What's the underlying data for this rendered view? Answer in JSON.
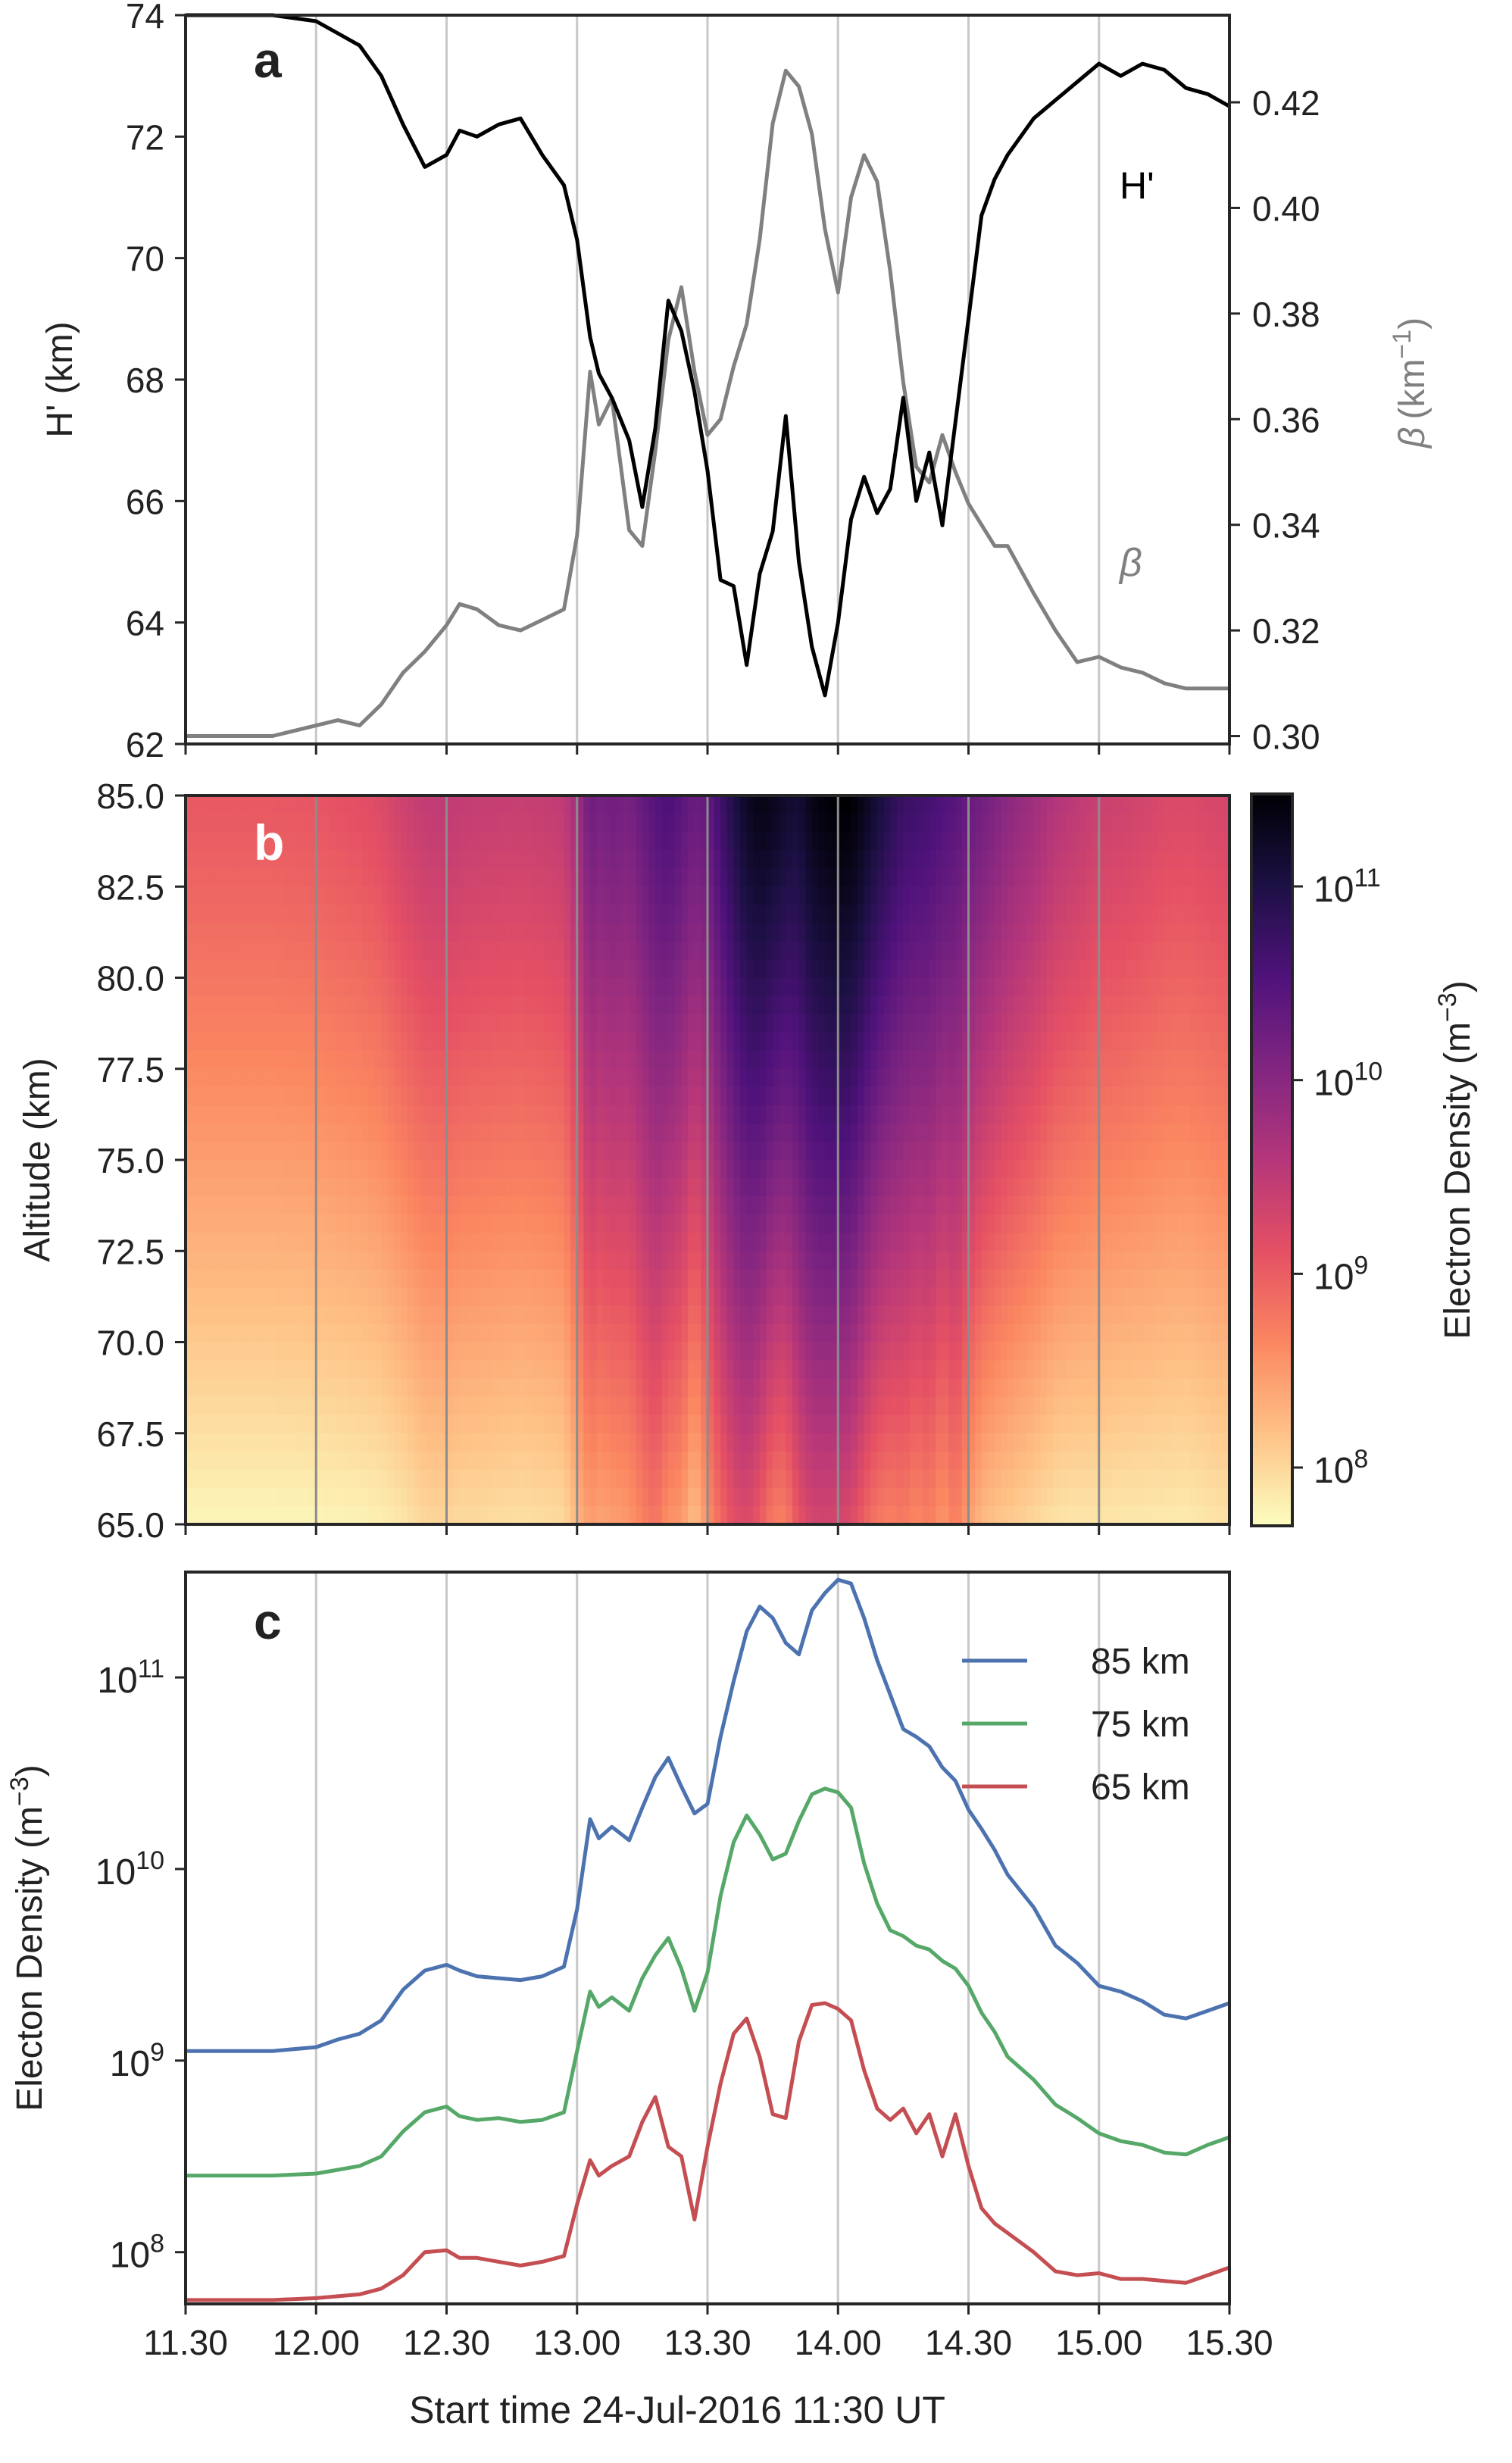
{
  "x_ticks": [
    "11.30",
    "12.00",
    "12.30",
    "13.00",
    "13.30",
    "14.00",
    "14.30",
    "15.00",
    "15.30"
  ],
  "x_title": "Start time 24-Jul-2016 11:30 UT",
  "colors": {
    "black": "#000000",
    "gray": "#808080",
    "grid": "#c8c8c8",
    "blue": "#4c72b0",
    "green": "#55a868",
    "red": "#c44e52"
  },
  "chart_data": [
    {
      "type": "line",
      "panel_label": "a",
      "xlabel": "",
      "ylabel": "H' (km)",
      "ylim": [
        62,
        74
      ],
      "y2label_main": "β",
      "y2label_unit": "(km",
      "y2label_exp": "−1",
      "y2label_close": ")",
      "y2lim": [
        0.2985,
        0.4365
      ],
      "y_ticks": [
        "62",
        "64",
        "66",
        "68",
        "70",
        "72",
        "74"
      ],
      "y2_ticks": [
        "0.30",
        "0.32",
        "0.34",
        "0.36",
        "0.38",
        "0.40",
        "0.42"
      ],
      "x": [
        "11.30",
        "11.40",
        "11.50",
        "12.00",
        "12.05",
        "12.10",
        "12.15",
        "12.20",
        "12.25",
        "12.30",
        "12.33",
        "12.37",
        "12.42",
        "12.47",
        "12.52",
        "12.57",
        "13.00",
        "13.03",
        "13.05",
        "13.08",
        "13.12",
        "13.15",
        "13.18",
        "13.21",
        "13.24",
        "13.27",
        "13.30",
        "13.33",
        "13.36",
        "13.39",
        "13.42",
        "13.45",
        "13.48",
        "13.51",
        "13.54",
        "13.57",
        "14.00",
        "14.03",
        "14.06",
        "14.09",
        "14.12",
        "14.15",
        "14.18",
        "14.21",
        "14.24",
        "14.27",
        "14.30",
        "14.33",
        "14.36",
        "14.39",
        "14.45",
        "14.50",
        "14.55",
        "15.00",
        "15.05",
        "15.10",
        "15.15",
        "15.20",
        "15.25",
        "15.30"
      ],
      "series": [
        {
          "name": "H'",
          "axis": "left",
          "color": "#000000",
          "values": [
            74.0,
            74.0,
            74.0,
            73.9,
            73.7,
            73.5,
            73.0,
            72.2,
            71.5,
            71.7,
            72.1,
            72.0,
            72.2,
            72.3,
            71.7,
            71.2,
            70.3,
            68.7,
            68.1,
            67.7,
            67.0,
            65.9,
            67.2,
            69.3,
            68.8,
            67.8,
            66.5,
            64.7,
            64.6,
            63.3,
            64.8,
            65.5,
            67.4,
            65.0,
            63.6,
            62.8,
            64.0,
            65.7,
            66.4,
            65.8,
            66.2,
            67.7,
            66.0,
            66.8,
            65.6,
            67.3,
            69.0,
            70.7,
            71.3,
            71.7,
            72.3,
            72.6,
            72.9,
            73.2,
            73.0,
            73.2,
            73.1,
            72.8,
            72.7,
            72.5
          ]
        },
        {
          "name": "β",
          "axis": "right",
          "color": "#808080",
          "values": [
            0.3,
            0.3,
            0.3,
            0.302,
            0.303,
            0.302,
            0.306,
            0.312,
            0.316,
            0.321,
            0.325,
            0.324,
            0.321,
            0.32,
            0.322,
            0.324,
            0.338,
            0.369,
            0.359,
            0.364,
            0.339,
            0.336,
            0.354,
            0.375,
            0.385,
            0.369,
            0.357,
            0.36,
            0.37,
            0.378,
            0.394,
            0.416,
            0.426,
            0.423,
            0.414,
            0.396,
            0.384,
            0.402,
            0.41,
            0.405,
            0.388,
            0.367,
            0.351,
            0.348,
            0.357,
            0.35,
            0.344,
            0.34,
            0.336,
            0.336,
            0.327,
            0.32,
            0.314,
            0.315,
            0.313,
            0.312,
            0.31,
            0.309,
            0.309,
            0.309
          ]
        }
      ]
    },
    {
      "type": "heatmap",
      "panel_label": "b",
      "xlabel": "",
      "ylabel": "Altitude (km)",
      "ylim": [
        65.0,
        85.0
      ],
      "y_ticks": [
        "65.0",
        "67.5",
        "70.0",
        "72.5",
        "75.0",
        "77.5",
        "80.0",
        "82.5",
        "85.0"
      ],
      "colorbar": {
        "label_main": "Electron Density (m",
        "label_exp": "−3",
        "label_close": ")",
        "scale": "log",
        "range": [
          50000000.0,
          300000000000.0
        ],
        "tick_bases": [
          "10",
          "10",
          "10",
          "10"
        ],
        "tick_exps": [
          "8",
          "9",
          "10",
          "11"
        ],
        "colormap": "magma_r"
      },
      "note_values": "log10 electron density at 85 km and 65 km per time column",
      "x": [
        "11.30",
        "11.40",
        "11.50",
        "12.00",
        "12.05",
        "12.10",
        "12.15",
        "12.20",
        "12.25",
        "12.30",
        "12.33",
        "12.37",
        "12.42",
        "12.47",
        "12.52",
        "12.57",
        "13.00",
        "13.03",
        "13.05",
        "13.08",
        "13.12",
        "13.15",
        "13.18",
        "13.21",
        "13.24",
        "13.27",
        "13.30",
        "13.33",
        "13.36",
        "13.39",
        "13.42",
        "13.45",
        "13.48",
        "13.51",
        "13.54",
        "13.57",
        "14.00",
        "14.03",
        "14.06",
        "14.09",
        "14.12",
        "14.15",
        "14.18",
        "14.21",
        "14.24",
        "14.27",
        "14.30",
        "14.33",
        "14.36",
        "14.39",
        "14.45",
        "14.50",
        "14.55",
        "15.00",
        "15.05",
        "15.10",
        "15.15",
        "15.20",
        "15.25",
        "15.30"
      ],
      "top_log10": [
        9.05,
        9.05,
        9.05,
        9.07,
        9.11,
        9.14,
        9.21,
        9.37,
        9.47,
        9.5,
        9.47,
        9.44,
        9.43,
        9.42,
        9.44,
        9.49,
        9.79,
        10.26,
        10.16,
        10.22,
        10.15,
        10.32,
        10.48,
        10.58,
        10.43,
        10.29,
        10.34,
        10.69,
        10.98,
        11.24,
        11.37,
        11.31,
        11.18,
        11.12,
        11.35,
        11.44,
        11.51,
        11.49,
        11.31,
        11.09,
        10.91,
        10.73,
        10.69,
        10.64,
        10.53,
        10.46,
        10.31,
        10.21,
        10.1,
        9.97,
        9.8,
        9.6,
        9.51,
        9.39,
        9.36,
        9.31,
        9.24,
        9.22,
        9.26,
        9.3
      ],
      "bottom_log10": [
        7.75,
        7.75,
        7.75,
        7.76,
        7.77,
        7.78,
        7.81,
        7.88,
        8.0,
        8.01,
        7.97,
        7.97,
        7.95,
        7.93,
        7.95,
        7.98,
        8.25,
        8.48,
        8.4,
        8.45,
        8.5,
        8.68,
        8.81,
        8.55,
        8.5,
        8.17,
        8.55,
        8.88,
        9.14,
        9.22,
        9.02,
        8.72,
        8.7,
        9.1,
        9.29,
        9.3,
        9.27,
        9.21,
        8.95,
        8.75,
        8.69,
        8.75,
        8.62,
        8.72,
        8.5,
        8.72,
        8.45,
        8.23,
        8.15,
        8.1,
        8.0,
        7.9,
        7.88,
        7.89,
        7.86,
        7.86,
        7.85,
        7.84,
        7.88,
        7.92
      ]
    },
    {
      "type": "line",
      "panel_label": "c",
      "xlabel": "",
      "ylabel_main": "Electon Density (m",
      "ylabel_exp": "−3",
      "ylabel_close": ")",
      "yscale": "log",
      "ylim_log10": [
        7.73,
        11.55
      ],
      "y_tick_bases": [
        "10",
        "10",
        "10",
        "10"
      ],
      "y_tick_exps": [
        "8",
        "9",
        "10",
        "11"
      ],
      "legend_position": "top-right",
      "x": [
        "11.30",
        "11.40",
        "11.50",
        "12.00",
        "12.05",
        "12.10",
        "12.15",
        "12.20",
        "12.25",
        "12.30",
        "12.33",
        "12.37",
        "12.42",
        "12.47",
        "12.52",
        "12.57",
        "13.00",
        "13.03",
        "13.05",
        "13.08",
        "13.12",
        "13.15",
        "13.18",
        "13.21",
        "13.24",
        "13.27",
        "13.30",
        "13.33",
        "13.36",
        "13.39",
        "13.42",
        "13.45",
        "13.48",
        "13.51",
        "13.54",
        "13.57",
        "14.00",
        "14.03",
        "14.06",
        "14.09",
        "14.12",
        "14.15",
        "14.18",
        "14.21",
        "14.24",
        "14.27",
        "14.30",
        "14.33",
        "14.36",
        "14.39",
        "14.45",
        "14.50",
        "14.55",
        "15.00",
        "15.05",
        "15.10",
        "15.15",
        "15.20",
        "15.25",
        "15.30"
      ],
      "series": [
        {
          "name": "85 km",
          "color": "#4c72b0",
          "log10_values": [
            9.05,
            9.05,
            9.05,
            9.07,
            9.11,
            9.14,
            9.21,
            9.37,
            9.47,
            9.5,
            9.47,
            9.44,
            9.43,
            9.42,
            9.44,
            9.49,
            9.79,
            10.26,
            10.16,
            10.22,
            10.15,
            10.32,
            10.48,
            10.58,
            10.43,
            10.29,
            10.34,
            10.69,
            10.98,
            11.24,
            11.37,
            11.31,
            11.18,
            11.12,
            11.35,
            11.44,
            11.51,
            11.49,
            11.31,
            11.09,
            10.91,
            10.73,
            10.69,
            10.64,
            10.53,
            10.46,
            10.31,
            10.21,
            10.1,
            9.97,
            9.8,
            9.6,
            9.51,
            9.39,
            9.36,
            9.31,
            9.24,
            9.22,
            9.26,
            9.3
          ]
        },
        {
          "name": "75 km",
          "color": "#55a868",
          "log10_values": [
            8.4,
            8.4,
            8.4,
            8.41,
            8.43,
            8.45,
            8.5,
            8.63,
            8.73,
            8.76,
            8.71,
            8.69,
            8.7,
            8.68,
            8.69,
            8.73,
            9.05,
            9.36,
            9.28,
            9.33,
            9.26,
            9.43,
            9.55,
            9.64,
            9.48,
            9.26,
            9.46,
            9.86,
            10.14,
            10.28,
            10.18,
            10.05,
            10.08,
            10.25,
            10.39,
            10.42,
            10.4,
            10.32,
            10.03,
            9.82,
            9.68,
            9.65,
            9.6,
            9.58,
            9.52,
            9.48,
            9.39,
            9.25,
            9.15,
            9.02,
            8.9,
            8.77,
            8.7,
            8.62,
            8.58,
            8.56,
            8.52,
            8.51,
            8.56,
            8.6
          ]
        },
        {
          "name": "65 km",
          "color": "#c44e52",
          "log10_values": [
            7.75,
            7.75,
            7.75,
            7.76,
            7.77,
            7.78,
            7.81,
            7.88,
            8.0,
            8.01,
            7.97,
            7.97,
            7.95,
            7.93,
            7.95,
            7.98,
            8.25,
            8.48,
            8.4,
            8.45,
            8.5,
            8.68,
            8.81,
            8.55,
            8.5,
            8.17,
            8.55,
            8.88,
            9.14,
            9.22,
            9.02,
            8.72,
            8.7,
            9.1,
            9.29,
            9.3,
            9.27,
            9.21,
            8.95,
            8.75,
            8.69,
            8.75,
            8.62,
            8.72,
            8.5,
            8.72,
            8.45,
            8.23,
            8.15,
            8.1,
            8.0,
            7.9,
            7.88,
            7.89,
            7.86,
            7.86,
            7.85,
            7.84,
            7.88,
            7.92
          ]
        }
      ]
    }
  ]
}
